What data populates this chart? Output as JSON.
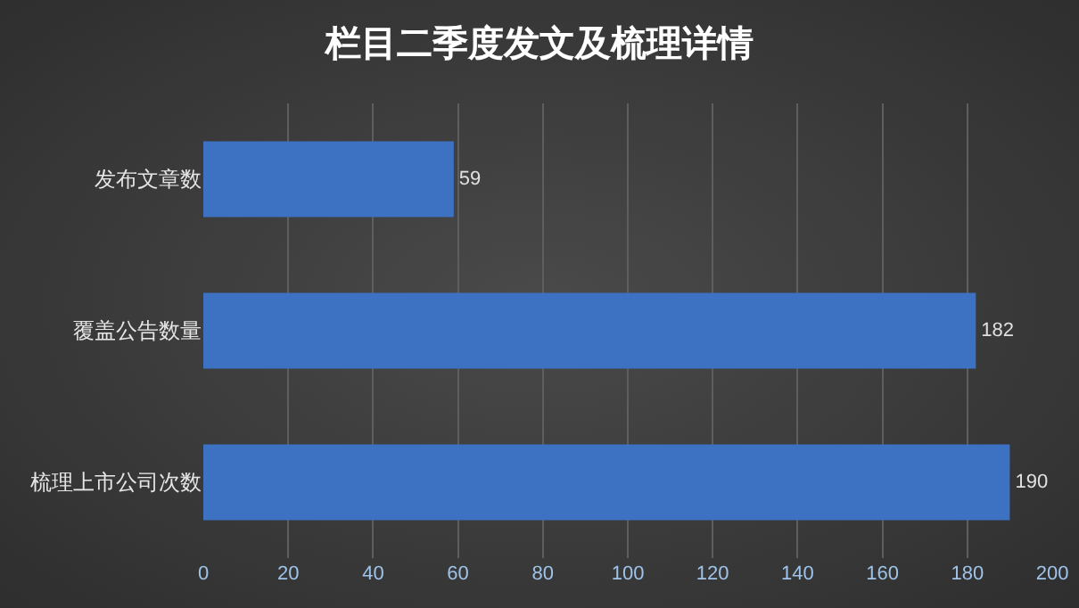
{
  "chart_data": {
    "type": "bar",
    "orientation": "horizontal",
    "title": "栏目二季度发文及梳理详情",
    "categories": [
      "发布文章数",
      "覆盖公告数量",
      "梳理上市公司次数"
    ],
    "values": [
      59,
      182,
      190
    ],
    "color": "#3d72c2",
    "xlim": [
      0,
      200
    ],
    "xticks": [
      0,
      20,
      40,
      60,
      80,
      100,
      120,
      140,
      160,
      180,
      200
    ],
    "grid": "x",
    "data_labels": true
  }
}
